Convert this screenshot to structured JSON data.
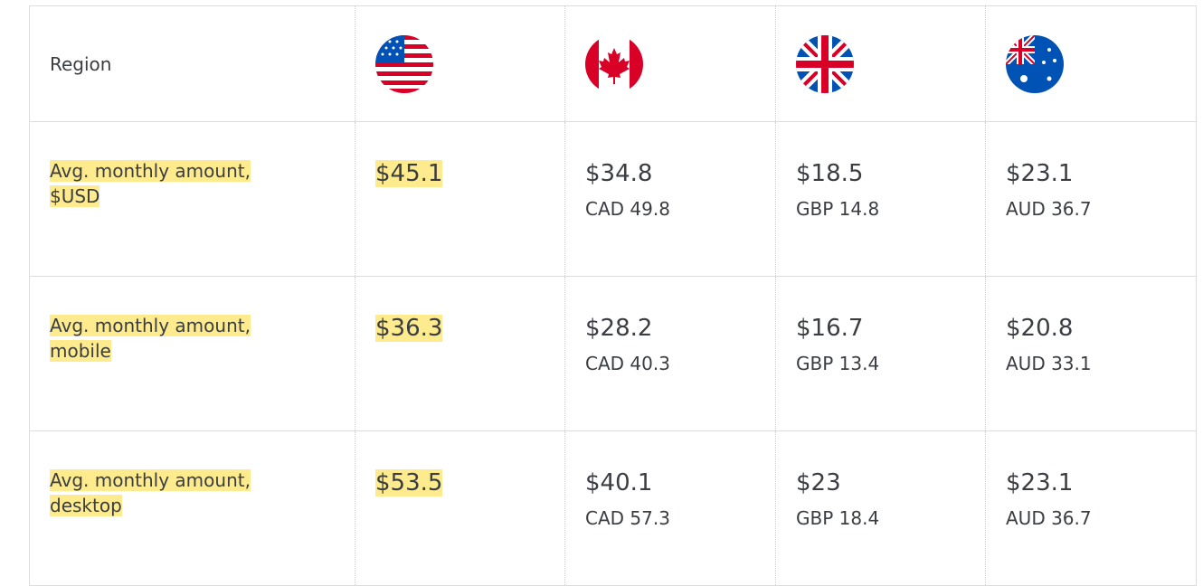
{
  "table": {
    "header": "Region",
    "rows": [
      {
        "label": "Avg. monthly amount, $USD",
        "us": "$45.1",
        "cells": [
          {
            "main": "$34.8",
            "sub": "CAD 49.8"
          },
          {
            "main": "$18.5",
            "sub": "GBP 14.8"
          },
          {
            "main": "$23.1",
            "sub": "AUD 36.7"
          }
        ]
      },
      {
        "label": "Avg. monthly amount, mobile",
        "us": "$36.3",
        "cells": [
          {
            "main": "$28.2",
            "sub": "CAD 40.3"
          },
          {
            "main": "$16.7",
            "sub": "GBP 13.4"
          },
          {
            "main": "$20.8",
            "sub": "AUD 33.1"
          }
        ]
      },
      {
        "label": "Avg. monthly amount, desktop",
        "us": "$53.5",
        "cells": [
          {
            "main": "$40.1",
            "sub": "CAD 57.3"
          },
          {
            "main": "$23",
            "sub": "GBP 18.4"
          },
          {
            "main": "$23.1",
            "sub": "AUD 36.7"
          }
        ]
      }
    ]
  }
}
